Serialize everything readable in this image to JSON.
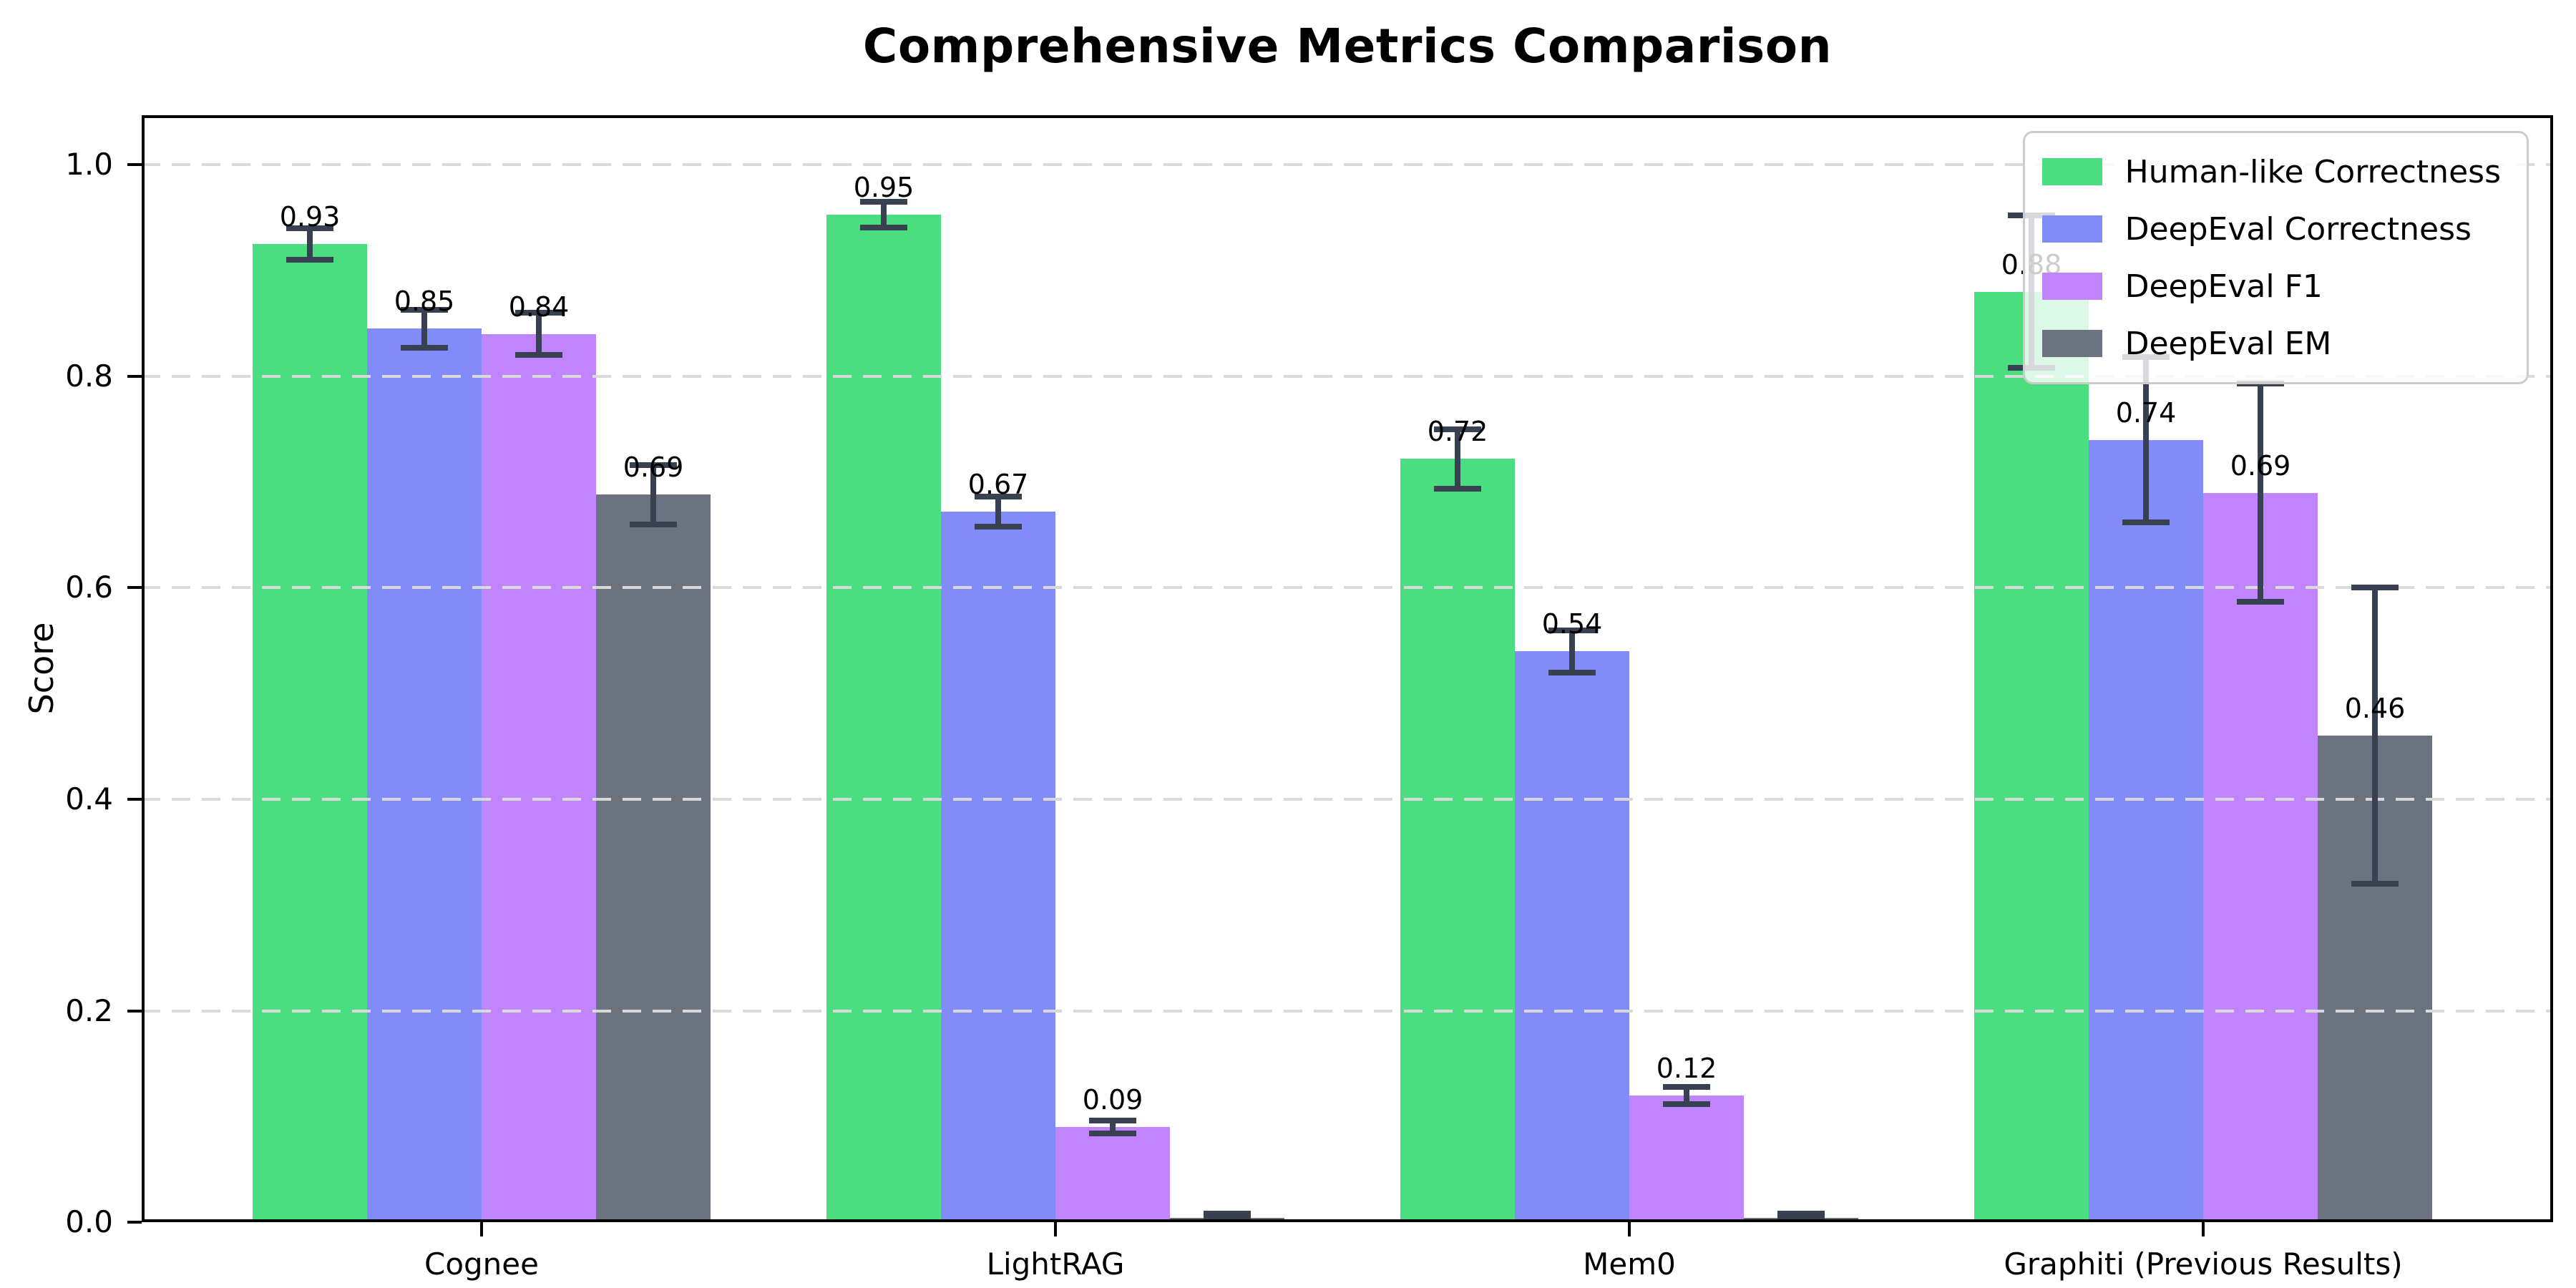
{
  "chart_data": {
    "type": "bar",
    "title": "Comprehensive Metrics Comparison",
    "ylabel": "Score",
    "xlabel": "",
    "categories": [
      "Cognee",
      "LightRAG",
      "Mem0",
      "Graphiti (Previous Results)"
    ],
    "y_tick_labels": [
      "0.0",
      "0.2",
      "0.4",
      "0.6",
      "0.8",
      "1.0"
    ],
    "y_tick_values": [
      0.0,
      0.2,
      0.4,
      0.6,
      0.8,
      1.0
    ],
    "ylim": [
      0,
      1.047
    ],
    "grid": {
      "axis": "y",
      "style": "dashed",
      "color": "#d9d9d9",
      "drawn_above_bars": true
    },
    "legend": {
      "position": "upper right",
      "entries": [
        "Human-like Correctness",
        "DeepEval Correctness",
        "DeepEval F1",
        "DeepEval EM"
      ]
    },
    "error_bar_color": "#374151",
    "series": [
      {
        "name": "Human-like Correctness",
        "color": "#4ade80",
        "values": [
          0.925,
          0.953,
          0.722,
          0.88
        ],
        "labels": [
          "0.93",
          "0.95",
          "0.72",
          "0.88"
        ],
        "errors": [
          0.015,
          0.012,
          0.028,
          0.072
        ]
      },
      {
        "name": "DeepEval Correctness",
        "color": "#818cf8",
        "values": [
          0.845,
          0.672,
          0.54,
          0.74
        ],
        "labels": [
          "0.85",
          "0.67",
          "0.54",
          "0.74"
        ],
        "errors": [
          0.018,
          0.014,
          0.02,
          0.078
        ]
      },
      {
        "name": "DeepEval F1",
        "color": "#c084fc",
        "values": [
          0.84,
          0.09,
          0.12,
          0.69
        ],
        "labels": [
          "0.84",
          "0.09",
          "0.12",
          "0.69"
        ],
        "errors": [
          0.02,
          0.006,
          0.008,
          0.103
        ]
      },
      {
        "name": "DeepEval EM",
        "color": "#6b7280",
        "values": [
          0.688,
          0.004,
          0.004,
          0.46
        ],
        "labels": [
          "0.69",
          "",
          "",
          "0.46"
        ],
        "errors": [
          0.028,
          0.004,
          0.004,
          0.14
        ]
      }
    ]
  }
}
